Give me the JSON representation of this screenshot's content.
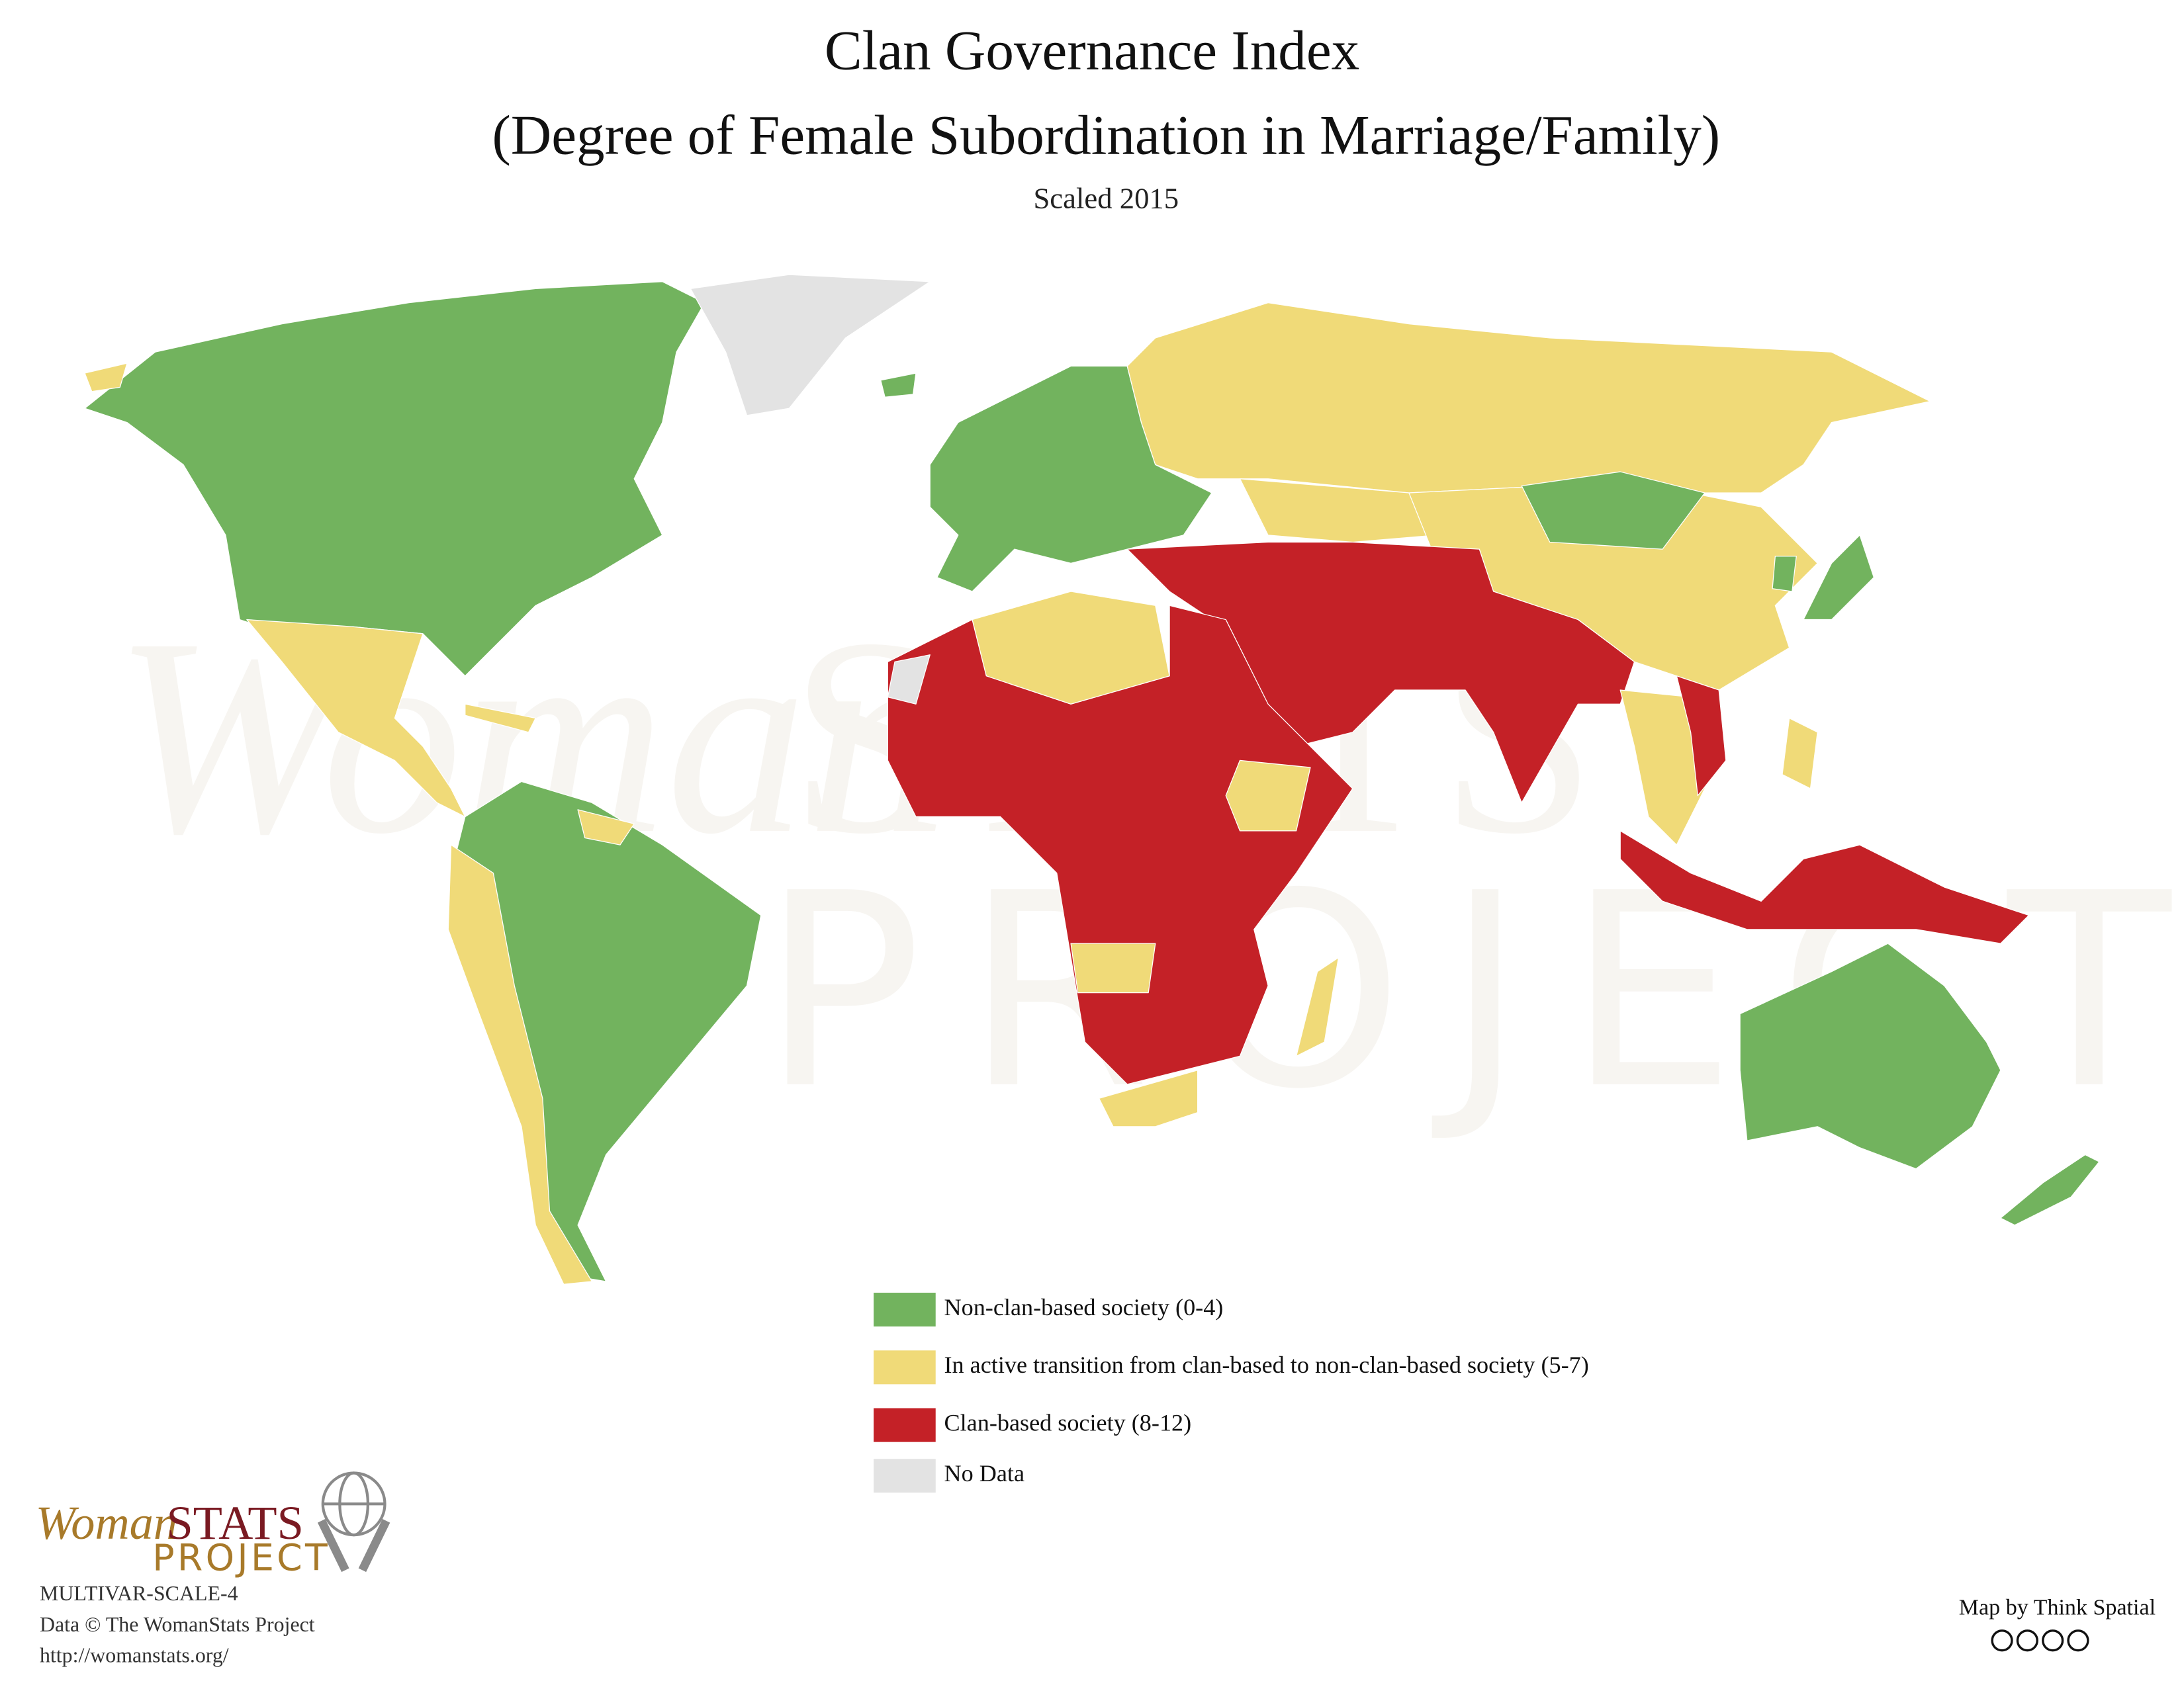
{
  "header": {
    "title": "Clan Governance Index",
    "subtitle": "(Degree of Female Subordination in Marriage/Family)",
    "note": "Scaled 2015"
  },
  "legend": {
    "items": [
      {
        "label": "Non-clan-based society (0-4)",
        "color": "#72b35e"
      },
      {
        "label": "In active transition from clan-based to non-clan-based society (5-7)",
        "color": "#f0da78"
      },
      {
        "label": "Clan-based society (8-12)",
        "color": "#c42127"
      },
      {
        "label": "No Data",
        "color": "#e3e3e3"
      }
    ]
  },
  "logo": {
    "woman": "Woman",
    "stats": "STATS",
    "project": "PROJECT"
  },
  "footer": {
    "code": "MULTIVAR-SCALE-4",
    "data": "Data © The WomanStats Project",
    "url": "http://womanstats.org/",
    "credit": "Map by Think Spatial"
  }
}
